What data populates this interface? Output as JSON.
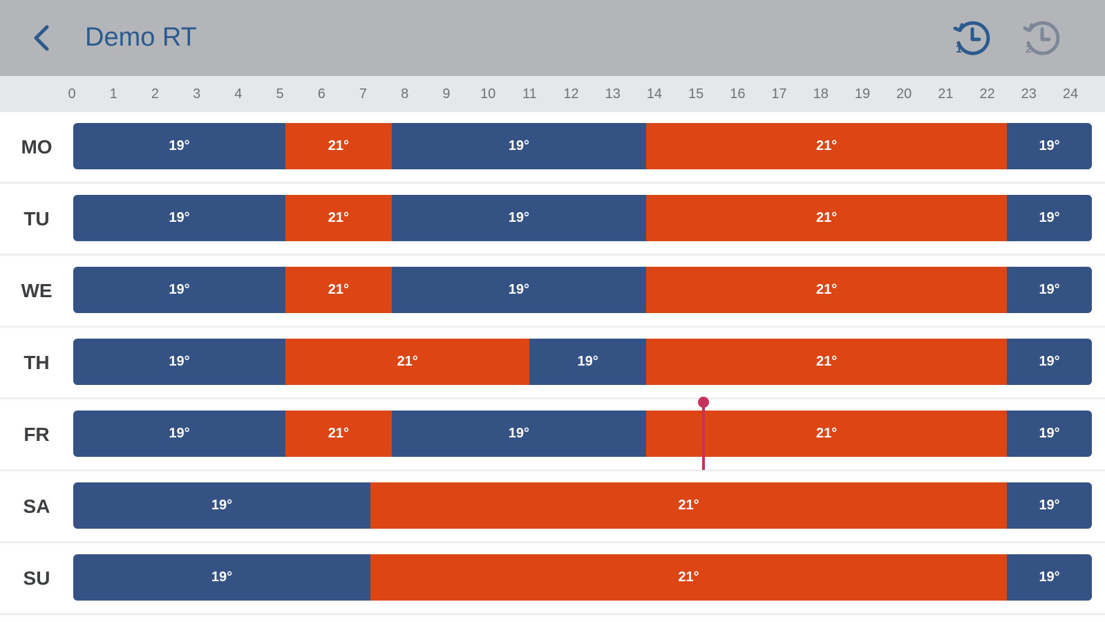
{
  "header": {
    "title": "Demo RT",
    "back_icon": "chevron-left-icon",
    "icons": [
      "schedule-history-1-icon",
      "schedule-history-2-icon"
    ],
    "colors": {
      "background": "#b4b5b8",
      "accent": "#2b5a8e",
      "inactive_icon": "#7d8797"
    }
  },
  "timeline": {
    "hours": [
      "0",
      "1",
      "2",
      "3",
      "4",
      "5",
      "6",
      "7",
      "8",
      "9",
      "10",
      "11",
      "12",
      "13",
      "14",
      "15",
      "16",
      "17",
      "18",
      "19",
      "20",
      "21",
      "22",
      "23",
      "24"
    ]
  },
  "colors": {
    "low": "#345283",
    "high": "#dc4615",
    "now_marker": "#c8325a"
  },
  "current_time_hour": 14.85,
  "days": [
    {
      "label": "MO",
      "segments": [
        {
          "start": 0,
          "end": 5,
          "temp": "19°",
          "level": "low"
        },
        {
          "start": 5,
          "end": 7.5,
          "temp": "21°",
          "level": "high"
        },
        {
          "start": 7.5,
          "end": 13.5,
          "temp": "19°",
          "level": "low"
        },
        {
          "start": 13.5,
          "end": 22,
          "temp": "21°",
          "level": "high"
        },
        {
          "start": 22,
          "end": 24,
          "temp": "19°",
          "level": "low"
        }
      ]
    },
    {
      "label": "TU",
      "segments": [
        {
          "start": 0,
          "end": 5,
          "temp": "19°",
          "level": "low"
        },
        {
          "start": 5,
          "end": 7.5,
          "temp": "21°",
          "level": "high"
        },
        {
          "start": 7.5,
          "end": 13.5,
          "temp": "19°",
          "level": "low"
        },
        {
          "start": 13.5,
          "end": 22,
          "temp": "21°",
          "level": "high"
        },
        {
          "start": 22,
          "end": 24,
          "temp": "19°",
          "level": "low"
        }
      ]
    },
    {
      "label": "WE",
      "segments": [
        {
          "start": 0,
          "end": 5,
          "temp": "19°",
          "level": "low"
        },
        {
          "start": 5,
          "end": 7.5,
          "temp": "21°",
          "level": "high"
        },
        {
          "start": 7.5,
          "end": 13.5,
          "temp": "19°",
          "level": "low"
        },
        {
          "start": 13.5,
          "end": 22,
          "temp": "21°",
          "level": "high"
        },
        {
          "start": 22,
          "end": 24,
          "temp": "19°",
          "level": "low"
        }
      ]
    },
    {
      "label": "TH",
      "segments": [
        {
          "start": 0,
          "end": 5,
          "temp": "19°",
          "level": "low"
        },
        {
          "start": 5,
          "end": 10.75,
          "temp": "21°",
          "level": "high"
        },
        {
          "start": 10.75,
          "end": 13.5,
          "temp": "19°",
          "level": "low"
        },
        {
          "start": 13.5,
          "end": 22,
          "temp": "21°",
          "level": "high"
        },
        {
          "start": 22,
          "end": 24,
          "temp": "19°",
          "level": "low"
        }
      ]
    },
    {
      "label": "FR",
      "segments": [
        {
          "start": 0,
          "end": 5,
          "temp": "19°",
          "level": "low"
        },
        {
          "start": 5,
          "end": 7.5,
          "temp": "21°",
          "level": "high"
        },
        {
          "start": 7.5,
          "end": 13.5,
          "temp": "19°",
          "level": "low"
        },
        {
          "start": 13.5,
          "end": 22,
          "temp": "21°",
          "level": "high"
        },
        {
          "start": 22,
          "end": 24,
          "temp": "19°",
          "level": "low"
        }
      ]
    },
    {
      "label": "SA",
      "segments": [
        {
          "start": 0,
          "end": 7,
          "temp": "19°",
          "level": "low"
        },
        {
          "start": 7,
          "end": 22,
          "temp": "21°",
          "level": "high"
        },
        {
          "start": 22,
          "end": 24,
          "temp": "19°",
          "level": "low"
        }
      ]
    },
    {
      "label": "SU",
      "segments": [
        {
          "start": 0,
          "end": 7,
          "temp": "19°",
          "level": "low"
        },
        {
          "start": 7,
          "end": 22,
          "temp": "21°",
          "level": "high"
        },
        {
          "start": 22,
          "end": 24,
          "temp": "19°",
          "level": "low"
        }
      ]
    }
  ]
}
